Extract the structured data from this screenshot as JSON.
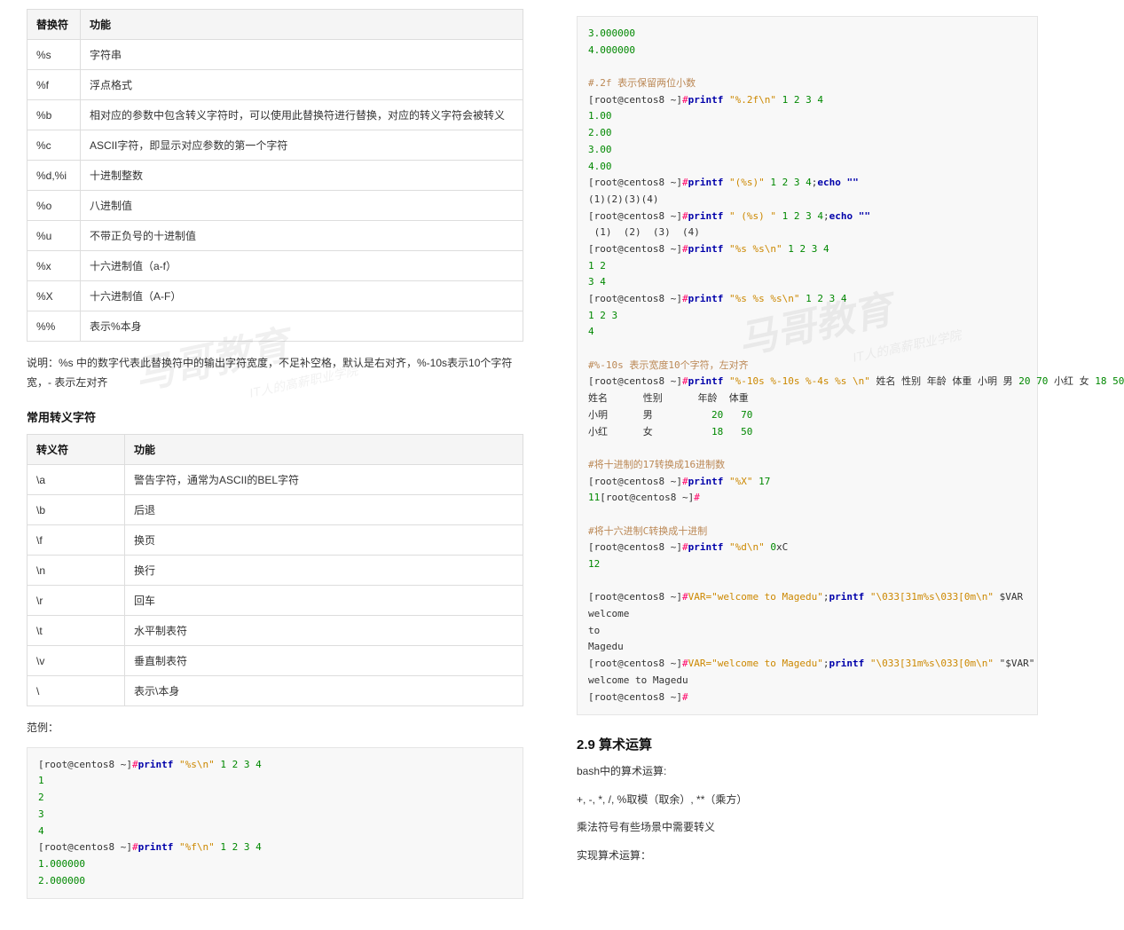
{
  "left": {
    "table1": {
      "headers": [
        "替换符",
        "功能"
      ],
      "rows": [
        [
          "%s",
          "字符串"
        ],
        [
          "%f",
          "浮点格式"
        ],
        [
          "%b",
          "相对应的参数中包含转义字符时，可以使用此替换符进行替换，对应的转义字符会被转义"
        ],
        [
          "%c",
          "ASCII字符，即显示对应参数的第一个字符"
        ],
        [
          "%d,%i",
          "十进制整数"
        ],
        [
          "%o",
          "八进制值"
        ],
        [
          "%u",
          "不带正负号的十进制值"
        ],
        [
          "%x",
          "十六进制值（a-f）"
        ],
        [
          "%X",
          "十六进制值（A-F）"
        ],
        [
          "%%",
          "表示%本身"
        ]
      ]
    },
    "note": "说明：%s 中的数字代表此替换符中的输出字符宽度，不足补空格，默认是右对齐，%-10s表示10个字符宽，- 表示左对齐",
    "escape_title": "常用转义字符",
    "table2": {
      "headers": [
        "转义符",
        "功能"
      ],
      "rows": [
        [
          "\\a",
          "警告字符，通常为ASCII的BEL字符"
        ],
        [
          "\\b",
          "后退"
        ],
        [
          "\\f",
          "换页"
        ],
        [
          "\\n",
          "换行"
        ],
        [
          "\\r",
          "回车"
        ],
        [
          "\\t",
          "水平制表符"
        ],
        [
          "\\v",
          "垂直制表符"
        ],
        [
          "\\",
          "表示\\本身"
        ]
      ]
    },
    "example_label": "范例：",
    "code1": {
      "lines": [
        {
          "prompt": "[root@centos8 ~]",
          "sharp": "#",
          "cmd": "printf",
          "str": " \"%s\\n\"",
          "args": " 1 2 3 4"
        },
        {
          "out": "1",
          "cls": "num"
        },
        {
          "out": "2",
          "cls": "num"
        },
        {
          "out": "3",
          "cls": "num"
        },
        {
          "out": "4",
          "cls": "num"
        },
        {
          "prompt": "[root@centos8 ~]",
          "sharp": "#",
          "cmd": "printf",
          "str": " \"%f\\n\"",
          "args": " 1 2 3 4"
        },
        {
          "out": "1.000000",
          "cls": "num"
        },
        {
          "out": "2.000000",
          "cls": "num"
        }
      ]
    }
  },
  "right": {
    "code2": {
      "lines": [
        {
          "out": "3.000000",
          "cls": "num"
        },
        {
          "out": "4.000000",
          "cls": "num"
        },
        {
          "blank": true
        },
        {
          "comment": "#.2f 表示保留两位小数"
        },
        {
          "prompt": "[root@centos8 ~]",
          "sharp": "#",
          "cmd": "printf",
          "str": " \"%.2f\\n\"",
          "args": " 1 2 3 4"
        },
        {
          "out": "1.00",
          "cls": "num"
        },
        {
          "out": "2.00",
          "cls": "num"
        },
        {
          "out": "3.00",
          "cls": "num"
        },
        {
          "out": "4.00",
          "cls": "num"
        },
        {
          "prompt": "[root@centos8 ~]",
          "sharp": "#",
          "cmd": "printf",
          "str": " \"(%s)\"",
          "args": " 1 2 3 4;",
          "tail": "echo \"\""
        },
        {
          "out": "(1)(2)(3)(4)",
          "cls": "plain"
        },
        {
          "prompt": "[root@centos8 ~]",
          "sharp": "#",
          "cmd": "printf",
          "str": " \" (%s) \"",
          "args": " 1 2 3 4;",
          "tail": "echo \"\""
        },
        {
          "out": " (1)  (2)  (3)  (4)",
          "cls": "plain"
        },
        {
          "prompt": "[root@centos8 ~]",
          "sharp": "#",
          "cmd": "printf",
          "str": " \"%s %s\\n\"",
          "args": " 1 2 3 4"
        },
        {
          "out": "1 2",
          "cls": "num"
        },
        {
          "out": "3 4",
          "cls": "num"
        },
        {
          "prompt": "[root@centos8 ~]",
          "sharp": "#",
          "cmd": "printf",
          "str": " \"%s %s %s\\n\"",
          "args": " 1 2 3 4"
        },
        {
          "out": "1 2 3",
          "cls": "num"
        },
        {
          "out": "4",
          "cls": "num"
        },
        {
          "blank": true
        },
        {
          "comment": "#%-10s 表示宽度10个字符，左对齐"
        },
        {
          "prompt": "[root@centos8 ~]",
          "sharp": "#",
          "cmd": "printf",
          "str": " \"%-10s %-10s %-4s %s \\n\"",
          "args": " 姓名 性别 年龄 体重 小明 男 20 70 小红 女 18 50"
        },
        {
          "out": "姓名      性别      年龄  体重",
          "cls": "plain"
        },
        {
          "out": "小明      男          20   70",
          "cls": "plainnum"
        },
        {
          "out": "小红      女          18   50",
          "cls": "plainnum"
        },
        {
          "blank": true
        },
        {
          "comment": "#将十进制的17转换成16进制数"
        },
        {
          "prompt": "[root@centos8 ~]",
          "sharp": "#",
          "cmd": "printf",
          "str": " \"%X\"",
          "args": " 17"
        },
        {
          "raw": "<span class=\"tok-num\">11</span>[root@centos8 ~]<span class=\"tok-sharp\">#</span>"
        },
        {
          "blank": true
        },
        {
          "comment": "#将十六进制C转换成十进制"
        },
        {
          "prompt": "[root@centos8 ~]",
          "sharp": "#",
          "cmd": "printf",
          "str": " \"%d\\n\"",
          "args": " 0xC"
        },
        {
          "out": "12",
          "cls": "num"
        },
        {
          "blank": true
        },
        {
          "prompt": "[root@centos8 ~]",
          "sharp": "#",
          "var": "VAR=\"welcome to Magedu\"",
          "semi": ";",
          "cmd": "printf",
          "str": " \"\\033[31m%s\\033[0m\\n\"",
          "args": " $VAR"
        },
        {
          "out": "welcome",
          "cls": "plain"
        },
        {
          "out": "to",
          "cls": "plain"
        },
        {
          "out": "Magedu",
          "cls": "plain"
        },
        {
          "prompt": "[root@centos8 ~]",
          "sharp": "#",
          "var": "VAR=\"welcome to Magedu\"",
          "semi": ";",
          "cmd": "printf",
          "str": " \"\\033[31m%s\\033[0m\\n\"",
          "args": " \"$VAR\""
        },
        {
          "out": "welcome to Magedu",
          "cls": "plain"
        },
        {
          "prompt": "[root@centos8 ~]",
          "sharp": "#"
        }
      ]
    },
    "heading": "2.9 算术运算",
    "p1": "bash中的算术运算:",
    "p2": "+, -, *, /, %取模（取余）, **（乘方）",
    "p3": "乘法符号有些场景中需要转义",
    "p4": "实现算术运算："
  },
  "watermark": {
    "main": "马哥教育",
    "sub": "IT人的高薪职业学院"
  }
}
